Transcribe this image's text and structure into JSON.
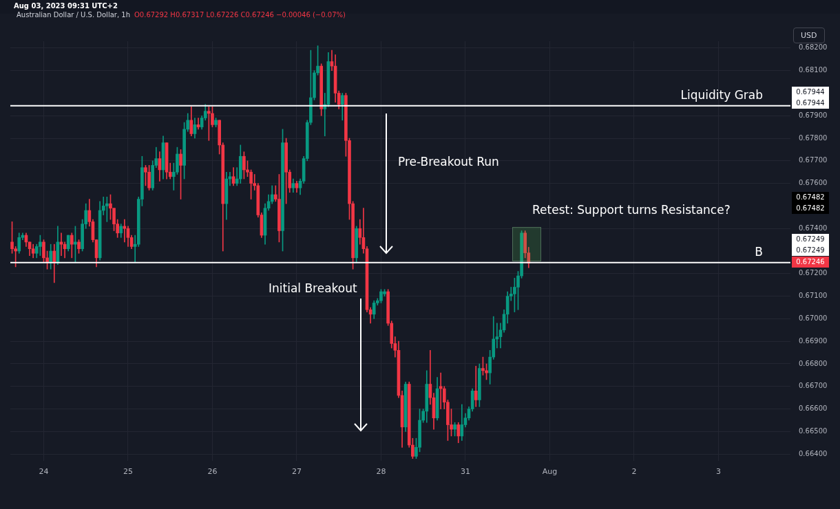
{
  "chart_data": {
    "type": "candlestick",
    "title": "Australian Dollar / U.S. Dollar, 1h",
    "subtitle": "O0.67292 H0.67317 L0.67226 C0.67246 −0.00046 (−0.07%)",
    "annotations": [
      "Aug 03, 2023 09:31 UTC+2",
      "USD",
      "Pre-Breakout Run",
      "Initial Breakout",
      "Retest: Support turns Resistance?",
      "0.67944",
      "0.67944",
      "0.67482",
      "0.67482",
      "0.67249",
      "0.67249",
      "0.67246"
    ],
    "categories": [
      null,
      null,
      null,
      null,
      null,
      null,
      null,
      null,
      null,
      "24",
      null,
      null,
      null,
      null,
      null,
      null,
      null,
      null,
      null,
      null,
      null,
      null,
      null,
      null,
      null,
      null,
      null,
      null,
      null,
      null,
      null,
      null,
      null,
      "25",
      null,
      null,
      null,
      null,
      null,
      null,
      null,
      null,
      null,
      null,
      null,
      null,
      null,
      null,
      null,
      null,
      null,
      null,
      null,
      null,
      null,
      null,
      null,
      "26",
      null,
      null,
      null,
      null,
      null,
      null,
      null,
      null,
      null,
      null,
      null,
      null,
      null,
      null,
      null,
      null,
      null,
      null,
      null,
      null,
      null,
      null,
      null,
      "27",
      null,
      null,
      null,
      null,
      null,
      null,
      null,
      null,
      null,
      null,
      null,
      null,
      null,
      null,
      null,
      null,
      null,
      null,
      null,
      null,
      null,
      null,
      null,
      "28",
      null,
      null,
      null,
      null,
      null,
      null,
      null,
      null,
      null,
      null,
      null,
      null,
      null,
      null,
      null,
      null,
      null,
      null,
      null,
      null,
      null,
      null,
      null,
      "31",
      null,
      null,
      null,
      null,
      null,
      null,
      null,
      null,
      null,
      null,
      null,
      null,
      null,
      null,
      null,
      null,
      null,
      null,
      null,
      null,
      null,
      null,
      null,
      "Aug",
      null,
      null,
      null,
      null,
      null,
      null,
      null,
      null,
      null,
      null,
      null,
      null,
      null,
      null,
      null,
      null,
      null,
      null,
      null,
      null,
      null,
      null,
      null,
      "2",
      null,
      null,
      null,
      null,
      null,
      null,
      null,
      null,
      null,
      null,
      null,
      null,
      null,
      null,
      null,
      null,
      null,
      null,
      null,
      null,
      null,
      null,
      null,
      "3",
      null,
      null,
      null,
      null,
      null,
      null,
      null,
      null,
      null,
      null,
      null,
      null,
      null,
      null,
      null,
      null,
      null,
      null,
      null,
      null
    ],
    "ohlc": [
      [
        0.6734,
        0.6743,
        0.6729,
        0.6731
      ],
      [
        0.6731,
        0.6732,
        0.6723,
        0.673
      ],
      [
        0.673,
        0.6738,
        0.6729,
        0.6736
      ],
      [
        0.6736,
        0.6738,
        0.6735,
        0.6737
      ],
      [
        0.6737,
        0.6738,
        0.6732,
        0.6734
      ],
      [
        0.6734,
        0.6734,
        0.6728,
        0.6731
      ],
      [
        0.6731,
        0.6733,
        0.6727,
        0.6729
      ],
      [
        0.6729,
        0.6733,
        0.6727,
        0.6732
      ],
      [
        0.6732,
        0.6737,
        0.6728,
        0.6734
      ],
      [
        0.6734,
        0.6735,
        0.6725,
        0.6727
      ],
      [
        0.6727,
        0.673,
        0.6722,
        0.6725
      ],
      [
        0.6725,
        0.6733,
        0.6722,
        0.673
      ],
      [
        0.673,
        0.6733,
        0.6716,
        0.6725
      ],
      [
        0.6725,
        0.6741,
        0.6724,
        0.6734
      ],
      [
        0.6734,
        0.6738,
        0.6728,
        0.6733
      ],
      [
        0.6733,
        0.6734,
        0.6727,
        0.6731
      ],
      [
        0.6731,
        0.6737,
        0.673,
        0.6737
      ],
      [
        0.6737,
        0.6738,
        0.6727,
        0.6733
      ],
      [
        0.6733,
        0.6741,
        0.6725,
        0.6734
      ],
      [
        0.6734,
        0.6735,
        0.6729,
        0.6731
      ],
      [
        0.6731,
        0.6744,
        0.673,
        0.6742
      ],
      [
        0.6742,
        0.6751,
        0.674,
        0.6748
      ],
      [
        0.6748,
        0.6753,
        0.6741,
        0.6743
      ],
      [
        0.6743,
        0.6744,
        0.6734,
        0.6735
      ],
      [
        0.6735,
        0.6735,
        0.6723,
        0.6727
      ],
      [
        0.6727,
        0.6752,
        0.6726,
        0.6748
      ],
      [
        0.6748,
        0.6754,
        0.6746,
        0.675
      ],
      [
        0.675,
        0.6754,
        0.6743,
        0.6751
      ],
      [
        0.6751,
        0.6755,
        0.6744,
        0.6749
      ],
      [
        0.6749,
        0.6749,
        0.6739,
        0.6742
      ],
      [
        0.6742,
        0.6744,
        0.6736,
        0.6738
      ],
      [
        0.6738,
        0.6742,
        0.6736,
        0.6741
      ],
      [
        0.6741,
        0.6744,
        0.6734,
        0.674
      ],
      [
        0.674,
        0.6741,
        0.6732,
        0.6736
      ],
      [
        0.6736,
        0.6737,
        0.6731,
        0.6732
      ],
      [
        0.6732,
        0.6737,
        0.6725,
        0.6733
      ],
      [
        0.6733,
        0.6754,
        0.6732,
        0.6753
      ],
      [
        0.6753,
        0.6772,
        0.675,
        0.6767
      ],
      [
        0.6767,
        0.6768,
        0.6759,
        0.6765
      ],
      [
        0.6765,
        0.6768,
        0.6757,
        0.6758
      ],
      [
        0.6758,
        0.677,
        0.6757,
        0.6768
      ],
      [
        0.6768,
        0.6776,
        0.6767,
        0.6771
      ],
      [
        0.6771,
        0.6774,
        0.6761,
        0.6766
      ],
      [
        0.6766,
        0.6781,
        0.6762,
        0.6778
      ],
      [
        0.6778,
        0.6778,
        0.6762,
        0.6765
      ],
      [
        0.6765,
        0.6769,
        0.6762,
        0.6763
      ],
      [
        0.6763,
        0.6769,
        0.6757,
        0.6765
      ],
      [
        0.6765,
        0.6776,
        0.6764,
        0.6773
      ],
      [
        0.6773,
        0.6775,
        0.6753,
        0.6768
      ],
      [
        0.6768,
        0.6787,
        0.6762,
        0.6784
      ],
      [
        0.6784,
        0.6791,
        0.6783,
        0.6788
      ],
      [
        0.6788,
        0.6794,
        0.6781,
        0.6782
      ],
      [
        0.6782,
        0.6789,
        0.678,
        0.6786
      ],
      [
        0.6786,
        0.6789,
        0.6784,
        0.6785
      ],
      [
        0.6785,
        0.679,
        0.6784,
        0.6789
      ],
      [
        0.6789,
        0.6795,
        0.6788,
        0.6792
      ],
      [
        0.6792,
        0.6794,
        0.6779,
        0.6791
      ],
      [
        0.6791,
        0.6794,
        0.6785,
        0.6786
      ],
      [
        0.6786,
        0.6789,
        0.6785,
        0.6788
      ],
      [
        0.6788,
        0.6788,
        0.6773,
        0.6777
      ],
      [
        0.6777,
        0.6778,
        0.673,
        0.6751
      ],
      [
        0.6751,
        0.6765,
        0.6744,
        0.6762
      ],
      [
        0.6762,
        0.6765,
        0.6759,
        0.6763
      ],
      [
        0.6763,
        0.6767,
        0.6759,
        0.676
      ],
      [
        0.676,
        0.6767,
        0.6759,
        0.6762
      ],
      [
        0.6762,
        0.6777,
        0.676,
        0.6772
      ],
      [
        0.6772,
        0.6774,
        0.6762,
        0.6766
      ],
      [
        0.6766,
        0.677,
        0.6763,
        0.6765
      ],
      [
        0.6765,
        0.6766,
        0.6753,
        0.676
      ],
      [
        0.676,
        0.6764,
        0.6757,
        0.6759
      ],
      [
        0.6759,
        0.676,
        0.6745,
        0.6746
      ],
      [
        0.6746,
        0.6747,
        0.6736,
        0.6737
      ],
      [
        0.6737,
        0.6751,
        0.6733,
        0.6749
      ],
      [
        0.6749,
        0.6755,
        0.6748,
        0.6752
      ],
      [
        0.6752,
        0.6759,
        0.6751,
        0.6755
      ],
      [
        0.6755,
        0.6759,
        0.6752,
        0.6753
      ],
      [
        0.6753,
        0.6764,
        0.6734,
        0.6739
      ],
      [
        0.6739,
        0.6784,
        0.673,
        0.6778
      ],
      [
        0.6778,
        0.678,
        0.6751,
        0.6765
      ],
      [
        0.6765,
        0.6766,
        0.6756,
        0.6758
      ],
      [
        0.6758,
        0.6762,
        0.6756,
        0.676
      ],
      [
        0.676,
        0.6761,
        0.6756,
        0.6758
      ],
      [
        0.6758,
        0.6762,
        0.6755,
        0.6761
      ],
      [
        0.6761,
        0.6772,
        0.676,
        0.6771
      ],
      [
        0.6771,
        0.6788,
        0.677,
        0.6787
      ],
      [
        0.6787,
        0.6819,
        0.6786,
        0.6798
      ],
      [
        0.6798,
        0.681,
        0.6797,
        0.6809
      ],
      [
        0.6809,
        0.6821,
        0.6808,
        0.6812
      ],
      [
        0.6812,
        0.6813,
        0.679,
        0.6793
      ],
      [
        0.6793,
        0.68,
        0.6781,
        0.6795
      ],
      [
        0.6795,
        0.6818,
        0.6794,
        0.6814
      ],
      [
        0.6814,
        0.6819,
        0.681,
        0.6812
      ],
      [
        0.6812,
        0.6817,
        0.6796,
        0.68
      ],
      [
        0.68,
        0.6801,
        0.6793,
        0.6795
      ],
      [
        0.6795,
        0.68,
        0.6788,
        0.6799
      ],
      [
        0.6799,
        0.68,
        0.6772,
        0.6779
      ],
      [
        0.6779,
        0.678,
        0.6744,
        0.6751
      ],
      [
        0.6751,
        0.6752,
        0.6722,
        0.6727
      ],
      [
        0.6727,
        0.6741,
        0.6725,
        0.674
      ],
      [
        0.674,
        0.6744,
        0.6733,
        0.6736
      ],
      [
        0.6736,
        0.6749,
        0.6729,
        0.6731
      ],
      [
        0.6731,
        0.6732,
        0.6703,
        0.6704
      ],
      [
        0.6704,
        0.6705,
        0.6698,
        0.6702
      ],
      [
        0.6702,
        0.6708,
        0.67,
        0.6707
      ],
      [
        0.6707,
        0.6709,
        0.6706,
        0.6708
      ],
      [
        0.6708,
        0.6713,
        0.6707,
        0.6712
      ],
      [
        0.6711,
        0.6713,
        0.671,
        0.6712
      ],
      [
        0.6712,
        0.6713,
        0.6697,
        0.6698
      ],
      [
        0.6698,
        0.6699,
        0.6687,
        0.6689
      ],
      [
        0.6689,
        0.6692,
        0.6683,
        0.6686
      ],
      [
        0.6686,
        0.669,
        0.6665,
        0.6666
      ],
      [
        0.6666,
        0.6668,
        0.6643,
        0.6652
      ],
      [
        0.6652,
        0.6672,
        0.665,
        0.6671
      ],
      [
        0.6671,
        0.6672,
        0.6643,
        0.6644
      ],
      [
        0.6644,
        0.6647,
        0.6638,
        0.6639
      ],
      [
        0.6639,
        0.6647,
        0.6638,
        0.6643
      ],
      [
        0.6643,
        0.666,
        0.6641,
        0.6655
      ],
      [
        0.6655,
        0.666,
        0.6654,
        0.6659
      ],
      [
        0.6659,
        0.6677,
        0.6654,
        0.6671
      ],
      [
        0.6671,
        0.6686,
        0.6662,
        0.6665
      ],
      [
        0.6665,
        0.6667,
        0.6651,
        0.6656
      ],
      [
        0.6656,
        0.6674,
        0.6655,
        0.6669
      ],
      [
        0.667,
        0.6676,
        0.666,
        0.6669
      ],
      [
        0.6669,
        0.667,
        0.666,
        0.6663
      ],
      [
        0.6663,
        0.6664,
        0.6646,
        0.6653
      ],
      [
        0.6653,
        0.666,
        0.6648,
        0.6651
      ],
      [
        0.6651,
        0.6654,
        0.6648,
        0.6653
      ],
      [
        0.6653,
        0.6654,
        0.6645,
        0.6648
      ],
      [
        0.6648,
        0.6662,
        0.6646,
        0.6653
      ],
      [
        0.6653,
        0.6658,
        0.6652,
        0.6656
      ],
      [
        0.6656,
        0.6661,
        0.6655,
        0.666
      ],
      [
        0.666,
        0.6669,
        0.6659,
        0.6668
      ],
      [
        0.6668,
        0.6679,
        0.6661,
        0.6664
      ],
      [
        0.6664,
        0.668,
        0.6661,
        0.6678
      ],
      [
        0.6678,
        0.6683,
        0.6675,
        0.6677
      ],
      [
        0.6677,
        0.668,
        0.6673,
        0.6676
      ],
      [
        0.6676,
        0.6686,
        0.6671,
        0.6683
      ],
      [
        0.6683,
        0.6701,
        0.6682,
        0.6691
      ],
      [
        0.6691,
        0.6698,
        0.6687,
        0.6692
      ],
      [
        0.6692,
        0.6698,
        0.6687,
        0.6695
      ],
      [
        0.6695,
        0.6704,
        0.6694,
        0.6702
      ],
      [
        0.6702,
        0.6712,
        0.6698,
        0.671
      ],
      [
        0.671,
        0.6714,
        0.6708,
        0.6711
      ],
      [
        0.6711,
        0.6718,
        0.6703,
        0.6714
      ],
      [
        0.6714,
        0.6721,
        0.6704,
        0.6719
      ],
      [
        0.6719,
        0.6739,
        0.6718,
        0.6738
      ],
      [
        0.6738,
        0.6739,
        0.6727,
        0.67292
      ],
      [
        0.67292,
        0.67317,
        0.67226,
        0.67246
      ],
      null,
      null,
      null,
      null,
      null,
      null,
      null,
      null,
      null,
      null,
      null,
      null,
      null,
      null,
      null,
      null,
      null,
      null,
      null,
      null,
      null,
      null,
      null,
      null,
      null,
      null,
      null,
      null,
      null,
      null,
      null,
      null,
      null,
      null,
      null,
      null,
      null,
      null,
      null,
      null,
      null,
      null,
      null,
      null,
      null,
      null,
      null,
      null,
      null,
      null,
      null,
      null,
      null,
      null,
      null,
      null,
      null,
      null,
      null,
      null,
      null,
      null,
      null,
      null,
      null,
      null,
      null,
      null,
      null,
      null,
      null,
      null,
      null,
      null
    ],
    "ylim": [
      0.6637,
      0.6823
    ],
    "yticks": [
      {
        "value": 0.664,
        "label": "0.66400"
      },
      {
        "value": 0.665,
        "label": "0.66500"
      },
      {
        "value": 0.666,
        "label": "0.66600"
      },
      {
        "value": 0.667,
        "label": "0.66700"
      },
      {
        "value": 0.668,
        "label": "0.66800"
      },
      {
        "value": 0.669,
        "label": "0.66900"
      },
      {
        "value": 0.67,
        "label": "0.67000"
      },
      {
        "value": 0.671,
        "label": "0.67100"
      },
      {
        "value": 0.672,
        "label": "0.67200"
      },
      {
        "value": 0.674,
        "label": "0.67400"
      },
      {
        "value": 0.676,
        "label": "0.67600"
      },
      {
        "value": 0.677,
        "label": "0.67700"
      },
      {
        "value": 0.678,
        "label": "0.67800"
      },
      {
        "value": 0.679,
        "label": "0.67900"
      },
      {
        "value": 0.681,
        "label": "0.68100"
      },
      {
        "value": 0.682,
        "label": "0.68200"
      }
    ],
    "ref_lines": [
      {
        "axis": "y",
        "value": 0.67944,
        "label": "Liquidity Grab",
        "color": "#ffffff"
      },
      {
        "axis": "y",
        "value": 0.67249,
        "label": "B",
        "color": "#ffffff"
      }
    ],
    "grid": true
  }
}
